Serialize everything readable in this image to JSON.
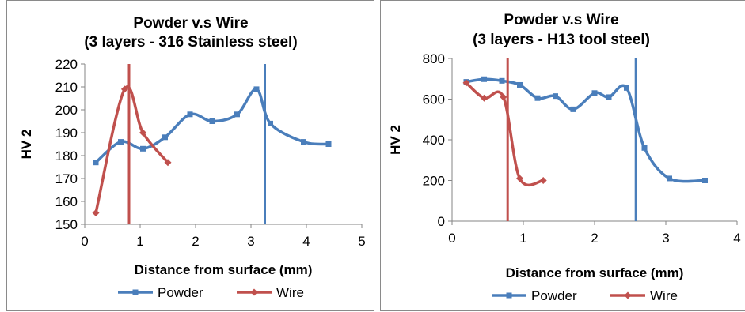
{
  "chart_data": [
    {
      "type": "line",
      "title": "Powder v.s Wire",
      "subtitle": "(3 layers - 316 Stainless steel)",
      "xlabel": "Distance from surface (mm)",
      "ylabel": "HV 2",
      "xlim": [
        0,
        5
      ],
      "ylim": [
        150,
        220
      ],
      "xticks": [
        "0",
        "1",
        "2",
        "3",
        "4",
        "5"
      ],
      "yticks": [
        "150",
        "160",
        "170",
        "180",
        "190",
        "200",
        "210",
        "220"
      ],
      "grid": false,
      "legend": "bottom",
      "series": [
        {
          "name": "Powder",
          "color": "#4a7ebb",
          "marker": "square",
          "x": [
            0.2,
            0.65,
            1.05,
            1.45,
            1.9,
            2.3,
            2.75,
            3.1,
            3.35,
            3.95,
            4.4
          ],
          "y": [
            177,
            186,
            183,
            188,
            198,
            195,
            198,
            209,
            194,
            186,
            185
          ]
        },
        {
          "name": "Wire",
          "color": "#c0504d",
          "marker": "diamond",
          "x": [
            0.2,
            0.72,
            1.05,
            1.5
          ],
          "y": [
            155,
            209,
            190,
            177
          ]
        }
      ],
      "vlines": [
        {
          "x": 0.8,
          "color": "#c0504d"
        },
        {
          "x": 3.25,
          "color": "#4a7ebb"
        }
      ]
    },
    {
      "type": "line",
      "title": "Powder v.s Wire",
      "subtitle": "(3 layers - H13 tool steel)",
      "xlabel": "Distance from surface (mm)",
      "ylabel": "HV 2",
      "xlim": [
        0,
        4
      ],
      "ylim": [
        0,
        800
      ],
      "xticks": [
        "0",
        "1",
        "2",
        "3",
        "4"
      ],
      "yticks": [
        "0",
        "200",
        "400",
        "600",
        "800"
      ],
      "grid": false,
      "legend": "bottom",
      "series": [
        {
          "name": "Powder",
          "color": "#4a7ebb",
          "marker": "square",
          "x": [
            0.2,
            0.45,
            0.7,
            0.95,
            1.2,
            1.45,
            1.7,
            2.0,
            2.2,
            2.45,
            2.7,
            3.05,
            3.55
          ],
          "y": [
            685,
            698,
            690,
            670,
            605,
            615,
            550,
            630,
            610,
            655,
            360,
            210,
            200
          ]
        },
        {
          "name": "Wire",
          "color": "#c0504d",
          "marker": "diamond",
          "x": [
            0.2,
            0.45,
            0.72,
            0.95,
            1.28
          ],
          "y": [
            680,
            605,
            610,
            210,
            200
          ]
        }
      ],
      "vlines": [
        {
          "x": 0.78,
          "color": "#c0504d"
        },
        {
          "x": 2.58,
          "color": "#4a7ebb"
        }
      ]
    }
  ]
}
